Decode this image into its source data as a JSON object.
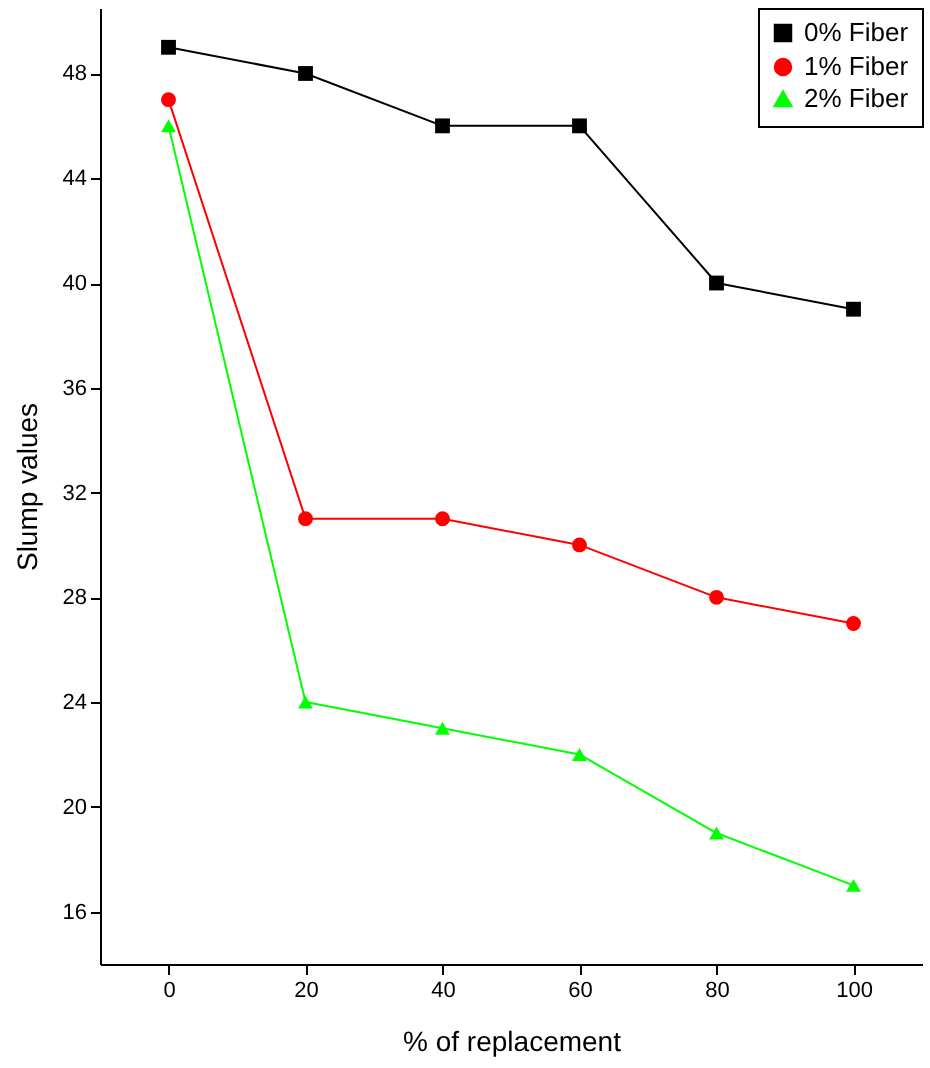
{
  "chart_data": {
    "type": "line",
    "xlabel": "% of replacement",
    "ylabel": "Slump values",
    "x": [
      0,
      20,
      40,
      60,
      80,
      100
    ],
    "series": [
      {
        "name": "0% Fiber",
        "color": "#000000",
        "marker": "square",
        "values": [
          49,
          48,
          46,
          46,
          40,
          39
        ]
      },
      {
        "name": "1% Fiber",
        "color": "#ff0000",
        "marker": "circle",
        "values": [
          47,
          31,
          31,
          30,
          28,
          27
        ]
      },
      {
        "name": "2% Fiber",
        "color": "#00ff00",
        "marker": "triangle",
        "values": [
          46,
          24,
          23,
          22,
          19,
          17
        ]
      }
    ],
    "xlim": [
      -10,
      110
    ],
    "xticks": [
      0,
      20,
      40,
      60,
      80,
      100
    ],
    "ylim": [
      14,
      50.5
    ],
    "yticks": [
      16,
      20,
      24,
      28,
      32,
      36,
      40,
      44,
      48
    ],
    "grid": false,
    "legend": "top right",
    "line_style": "solid"
  }
}
